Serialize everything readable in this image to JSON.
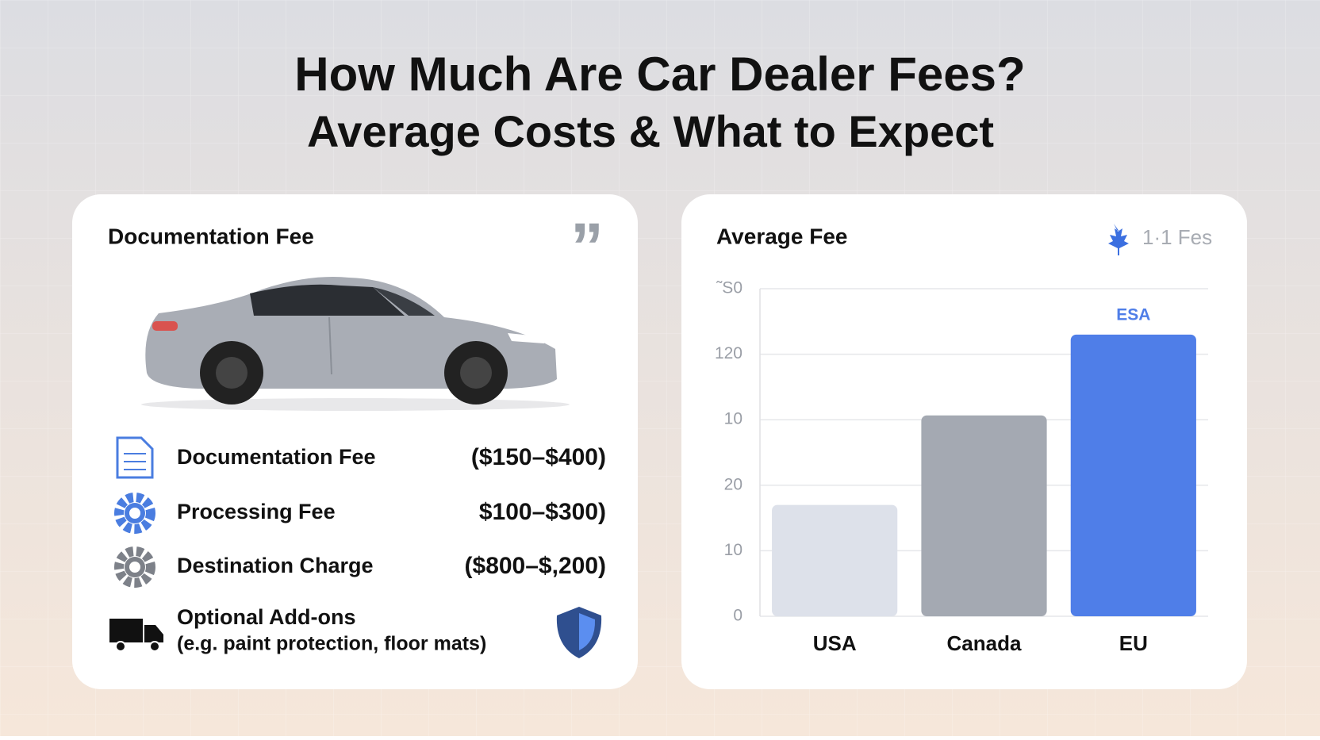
{
  "header": {
    "title_lines": [
      "How Much Are Car Dealer Fees?",
      "Average Costs & What to Expect"
    ]
  },
  "left_card": {
    "heading": "Documentation Fee",
    "items": [
      {
        "label": "Documentation Fee",
        "amount": "($150–$400)"
      },
      {
        "label": "Processing Fee",
        "amount": "$100–$300)"
      },
      {
        "label": "Destination Charge",
        "amount": "($800–$,200)"
      },
      {
        "label": "Optional Add-ons",
        "note": "(e.g. paint protection, floor mats)"
      }
    ]
  },
  "chart_data": {
    "type": "bar",
    "title": "Average Fee",
    "legend_text": "1·1 Fes",
    "categories": [
      "USA",
      "Canada",
      "EU"
    ],
    "values": [
      51,
      92,
      129
    ],
    "colors": [
      "#dde1ea",
      "#a4a9b2",
      "#4f7ee8"
    ],
    "annotation": "ESA",
    "ylim": [
      0,
      150
    ],
    "yticks": [
      0,
      {
        "value": 30,
        "label": "10"
      },
      {
        "value": 60,
        "label": "20"
      },
      {
        "value": 90,
        "label": "10"
      },
      120,
      {
        "value": 150,
        "label": "˜S0"
      }
    ],
    "grid": true
  }
}
